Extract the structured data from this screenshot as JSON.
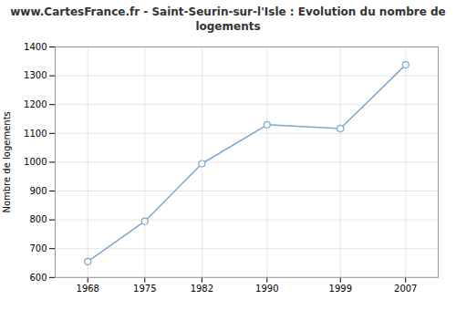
{
  "chart_data": {
    "type": "line",
    "title": "www.CartesFrance.fr - Saint-Seurin-sur-l'Isle : Evolution du nombre de logements",
    "x": [
      1968,
      1975,
      1982,
      1990,
      1999,
      2007
    ],
    "values": [
      655,
      795,
      995,
      1130,
      1117,
      1338
    ],
    "ylabel": "Nombre de logements",
    "xlim": [
      1964,
      2011
    ],
    "xticks": [
      1968,
      1975,
      1982,
      1990,
      1999,
      2007
    ],
    "ylim": [
      600,
      1400
    ],
    "yticks": [
      600,
      700,
      800,
      900,
      1000,
      1100,
      1200,
      1300,
      1400
    ],
    "grid": true,
    "color": "#7aa8d2",
    "marker": "circle"
  }
}
